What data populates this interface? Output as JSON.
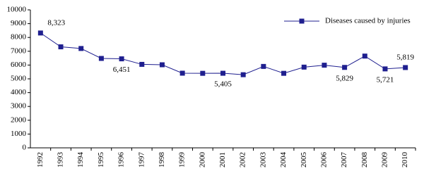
{
  "chart_data": {
    "type": "line",
    "categories": [
      "1992",
      "1993",
      "1994",
      "1995",
      "1996",
      "1997",
      "1998",
      "1999",
      "2000",
      "2001",
      "2002",
      "2003",
      "2004",
      "2005",
      "2006",
      "2007",
      "2008",
      "2009",
      "2010"
    ],
    "series": [
      {
        "name": "Diseases caused by injuries",
        "color": "#1f1f8f",
        "values": [
          8323,
          7320,
          7200,
          6480,
          6451,
          6050,
          6020,
          5410,
          5400,
          5405,
          5300,
          5900,
          5400,
          5850,
          5990,
          5829,
          6650,
          5721,
          5819
        ],
        "value_labels": [
          "8,323",
          null,
          null,
          null,
          "6,451",
          null,
          null,
          null,
          null,
          "5,405",
          null,
          null,
          null,
          null,
          null,
          "5,829",
          null,
          "5,721",
          "5,819"
        ]
      }
    ],
    "ylim": [
      0,
      10000
    ],
    "yticks": [
      0,
      1000,
      2000,
      3000,
      4000,
      5000,
      6000,
      7000,
      8000,
      9000,
      10000
    ],
    "legend": "top-right"
  }
}
